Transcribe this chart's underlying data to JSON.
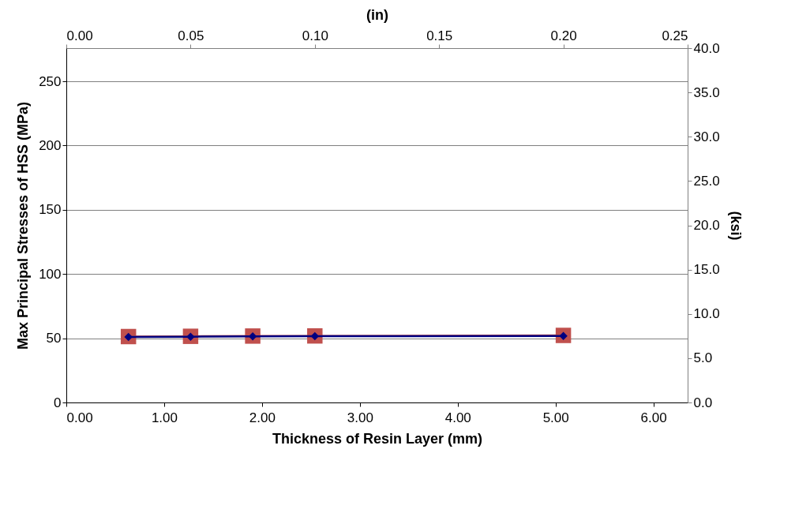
{
  "chart_data": {
    "type": "line",
    "xlabel": "Thickness of Resin Layer (mm)",
    "ylabel": "Max Principal Stresses of HSS  (MPa)",
    "y2label": "(ksi)",
    "x2label": "(in)",
    "x": [
      0.635,
      1.27,
      1.905,
      2.54,
      5.08
    ],
    "series": [
      {
        "color": "#c0504d",
        "marker": "square",
        "values": [
          51.3,
          51.5,
          51.7,
          51.8,
          52.2
        ]
      },
      {
        "color": "#000080",
        "marker": "diamond",
        "values": [
          51.0,
          51.2,
          51.4,
          51.6,
          51.8
        ]
      }
    ],
    "xlim": [
      0,
      6.35
    ],
    "xticks": [
      {
        "value": 0,
        "label": "0.00"
      },
      {
        "value": 1,
        "label": "1.00"
      },
      {
        "value": 2,
        "label": "2.00"
      },
      {
        "value": 3,
        "label": "3.00"
      },
      {
        "value": 4,
        "label": "4.00"
      },
      {
        "value": 5,
        "label": "5.00"
      },
      {
        "value": 6,
        "label": "6.00"
      }
    ],
    "x2lim": [
      0,
      0.25
    ],
    "x2ticks": [
      {
        "value": 0,
        "label": "0.00"
      },
      {
        "value": 0.05,
        "label": "0.05"
      },
      {
        "value": 0.1,
        "label": "0.10"
      },
      {
        "value": 0.15,
        "label": "0.15"
      },
      {
        "value": 0.2,
        "label": "0.20"
      },
      {
        "value": 0.25,
        "label": "0.25"
      }
    ],
    "ylim": [
      0,
      275.8
    ],
    "yticks": [
      0,
      50,
      100,
      150,
      200,
      250
    ],
    "y2lim": [
      0,
      40
    ],
    "y2ticks": [
      {
        "value": 0,
        "label": "0.0"
      },
      {
        "value": 5,
        "label": "5.0"
      },
      {
        "value": 10,
        "label": "10.0"
      },
      {
        "value": 15,
        "label": "15.0"
      },
      {
        "value": 20,
        "label": "20.0"
      },
      {
        "value": 25,
        "label": "25.0"
      },
      {
        "value": 30,
        "label": "30.0"
      },
      {
        "value": 35,
        "label": "35.0"
      },
      {
        "value": 40,
        "label": "40.0"
      }
    ],
    "grid": "y",
    "line_style": "solid"
  }
}
